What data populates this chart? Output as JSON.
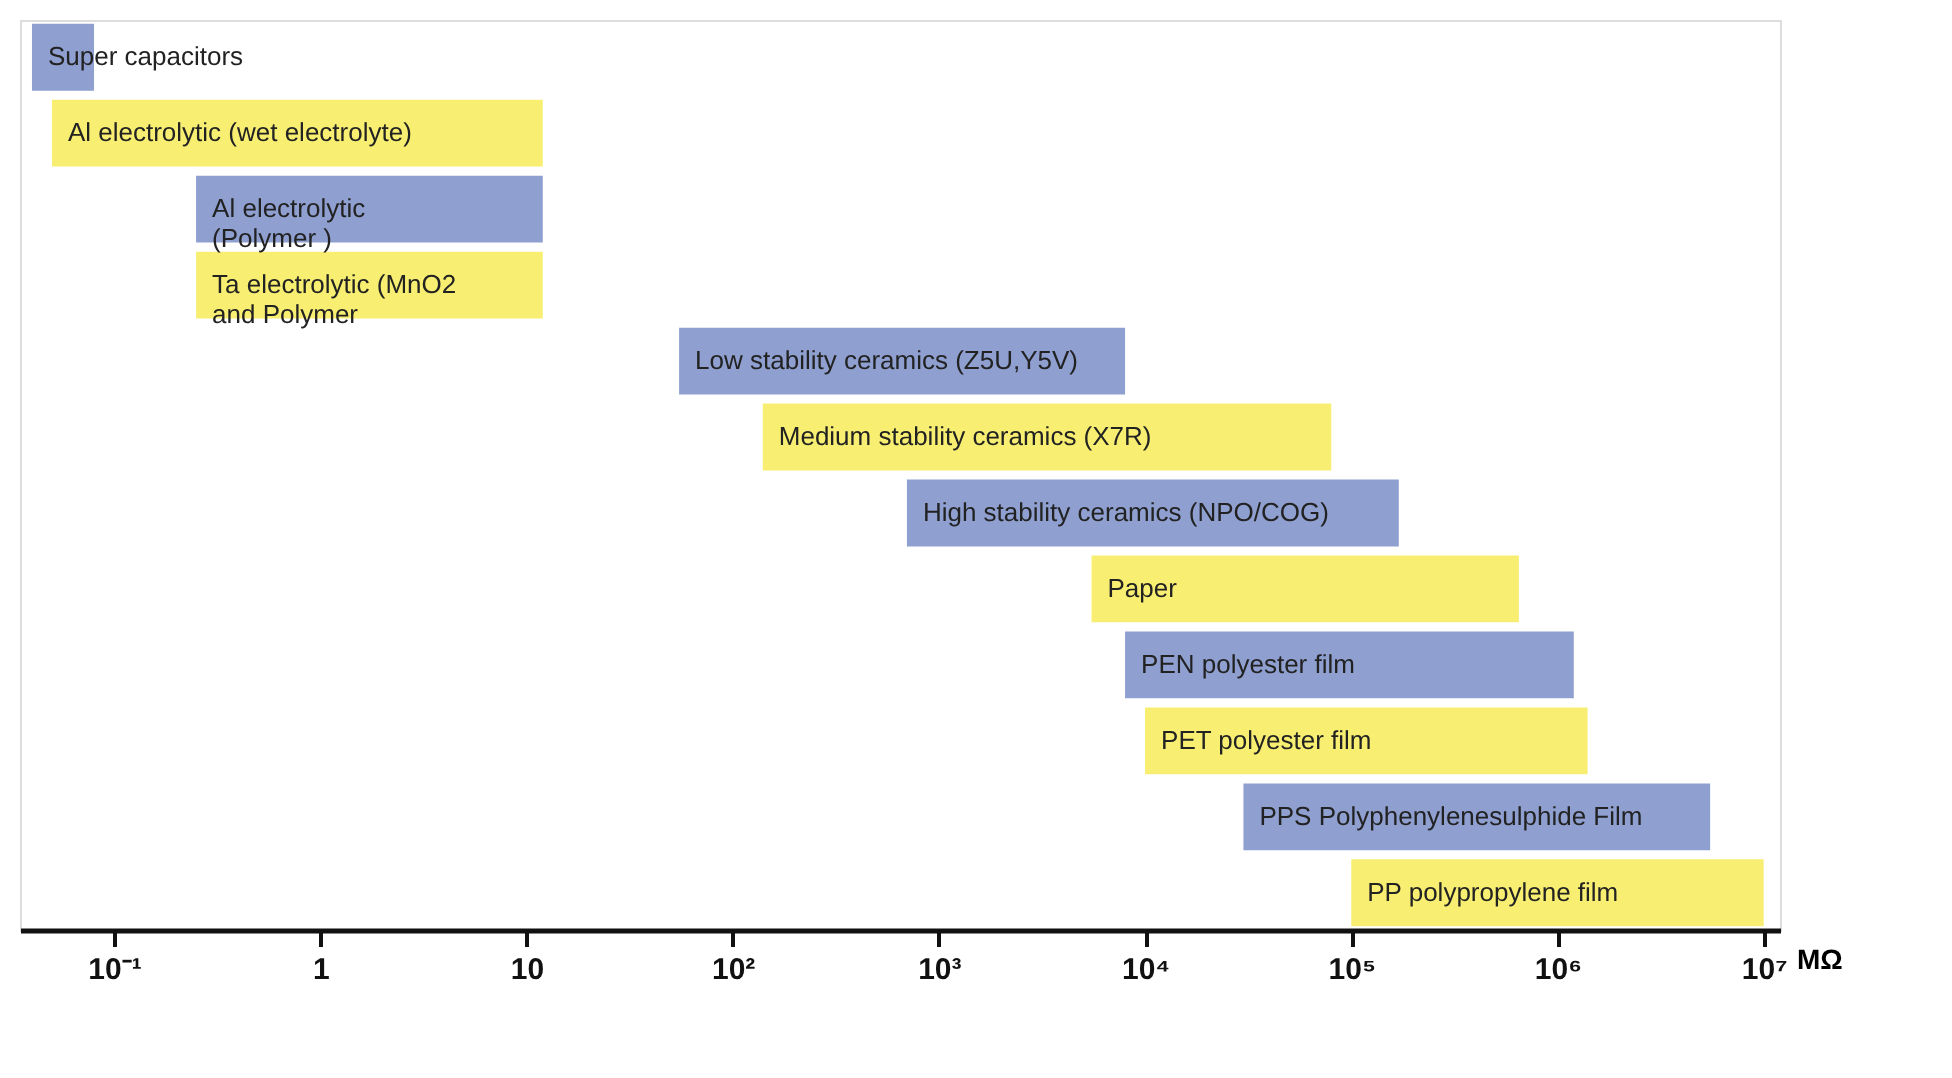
{
  "chart_data": {
    "type": "bar",
    "orientation": "horizontal",
    "log": "x",
    "categories": [
      "Super capacitors",
      "Al electrolytic (wet electrolyte)",
      "Al electrolytic\n(Polymer )",
      "Ta electrolytic (MnO2\nand Polymer",
      "Low stability ceramics (Z5U,Y5V)",
      "Medium stability ceramics (X7R)",
      "High stability ceramics (NPO/COG)",
      "Paper",
      "PEN polyester film",
      "PET polyester film",
      "PPS Polyphenylenesulphide Film",
      "PP polypropylene film"
    ],
    "base": [
      0.04,
      0.05,
      0.25,
      0.25,
      55,
      140,
      700,
      5500,
      8000,
      10000,
      30000,
      100000
    ],
    "values": [
      0.04,
      11.95,
      11.75,
      11.75,
      7945,
      79860,
      169300,
      644500,
      1192000,
      1390000,
      5470000,
      9900000
    ],
    "colors": [
      "#8e9fd0",
      "#f8ef72",
      "#8e9fd0",
      "#f8ef72",
      "#8e9fd0",
      "#f8ef72",
      "#8e9fd0",
      "#f8ef72",
      "#8e9fd0",
      "#f8ef72",
      "#8e9fd0",
      "#f8ef72"
    ],
    "xlim": [
      0.035,
      12000000
    ],
    "xticks": [
      {
        "value": 0.1,
        "label": "10⁻¹"
      },
      1,
      10,
      {
        "value": 100,
        "label": "10²"
      },
      {
        "value": 1000,
        "label": "10³"
      },
      {
        "value": 10000,
        "label": "10⁴"
      },
      {
        "value": 100000,
        "label": "10⁵"
      },
      {
        "value": 1000000,
        "label": "10⁶"
      },
      {
        "value": 10000000,
        "label": "10⁷"
      }
    ],
    "xlabel": "MΩ",
    "grid": false
  }
}
